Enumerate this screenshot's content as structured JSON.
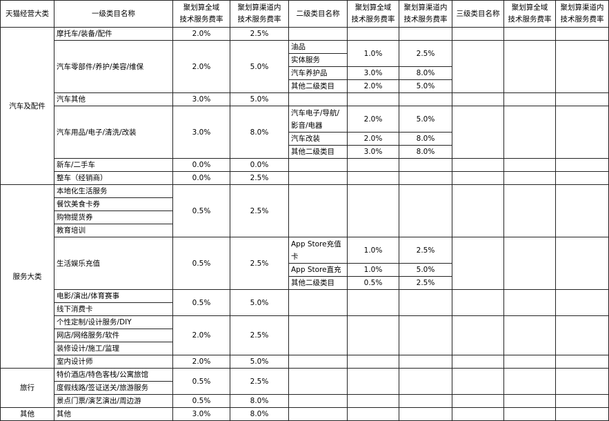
{
  "header": [
    "天猫经营大类",
    "一级类目名称",
    "聚划算全域\n技术服务费率",
    "聚划算渠道内\n技术服务费率",
    "二级类目名称",
    "聚划算全域\n技术服务费率",
    "聚划算渠道内\n技术服务费率",
    "三级类目名称",
    "聚划算全域\n技术服务费率",
    "聚划算渠道内\n技术服务费率"
  ],
  "groups": [
    {
      "name": "汽车及配件",
      "items": [
        {
          "names": [
            "摩托车/装备/配件"
          ],
          "rates": [
            "2.0%",
            "2.5%"
          ],
          "subs": []
        },
        {
          "names": [
            "汽车零部件/养护/美容/维保"
          ],
          "rates": [
            "2.0%",
            "5.0%"
          ],
          "subs": [
            {
              "names": [
                "油品",
                "实体服务"
              ],
              "rates": [
                "1.0%",
                "2.5%"
              ]
            },
            {
              "names": [
                "汽车养护品"
              ],
              "rates": [
                "3.0%",
                "8.0%"
              ]
            },
            {
              "names": [
                "其他二级类目"
              ],
              "rates": [
                "2.0%",
                "5.0%"
              ]
            }
          ]
        },
        {
          "names": [
            "汽车其他"
          ],
          "rates": [
            "3.0%",
            "5.0%"
          ],
          "subs": []
        },
        {
          "names": [
            "汽车用品/电子/清洗/改装"
          ],
          "rates": [
            "3.0%",
            "8.0%"
          ],
          "subs": [
            {
              "names": [
                "汽车电子/导航/影音/电器"
              ],
              "rates": [
                "2.0%",
                "5.0%"
              ]
            },
            {
              "names": [
                "汽车改装"
              ],
              "rates": [
                "2.0%",
                "8.0%"
              ]
            },
            {
              "names": [
                "其他二级类目"
              ],
              "rates": [
                "3.0%",
                "8.0%"
              ]
            }
          ]
        },
        {
          "names": [
            "新车/二手车"
          ],
          "rates": [
            "0.0%",
            "0.0%"
          ],
          "subs": []
        },
        {
          "names": [
            "整车（经销商）"
          ],
          "rates": [
            "0.0%",
            "2.5%"
          ],
          "subs": []
        }
      ]
    },
    {
      "name": "服务大类",
      "items": [
        {
          "names": [
            "本地化生活服务",
            "餐饮美食卡券",
            "购物提货券",
            "教育培训"
          ],
          "rates": [
            "0.5%",
            "2.5%"
          ],
          "subs": []
        },
        {
          "names": [
            "生活娱乐充值"
          ],
          "rates": [
            "0.5%",
            "2.5%"
          ],
          "subs": [
            {
              "names": [
                "App Store充值卡"
              ],
              "rates": [
                "1.0%",
                "2.5%"
              ]
            },
            {
              "names": [
                "App Store直充"
              ],
              "rates": [
                "1.0%",
                "5.0%"
              ]
            },
            {
              "names": [
                "其他二级类目"
              ],
              "rates": [
                "0.5%",
                "2.5%"
              ]
            }
          ]
        },
        {
          "names": [
            "电影/演出/体育赛事",
            "线下消费卡"
          ],
          "rates": [
            "0.5%",
            "5.0%"
          ],
          "subs": []
        },
        {
          "names": [
            "个性定制/设计服务/DIY",
            "网店/网络服务/软件",
            "装修设计/施工/监理"
          ],
          "rates": [
            "2.0%",
            "2.5%"
          ],
          "subs": []
        },
        {
          "names": [
            "室内设计师"
          ],
          "rates": [
            "2.0%",
            "5.0%"
          ],
          "subs": []
        }
      ]
    },
    {
      "name": "旅行",
      "items": [
        {
          "names": [
            "特价酒店/特色客栈/公寓旅馆",
            "度假线路/签证送关/旅游服务"
          ],
          "rates": [
            "0.5%",
            "2.5%"
          ],
          "subs": []
        },
        {
          "names": [
            "景点门票/演艺演出/周边游"
          ],
          "rates": [
            "0.5%",
            "8.0%"
          ],
          "subs": []
        }
      ]
    },
    {
      "name": "其他",
      "items": [
        {
          "names": [
            "其他"
          ],
          "rates": [
            "3.0%",
            "8.0%"
          ],
          "subs": []
        }
      ]
    }
  ]
}
